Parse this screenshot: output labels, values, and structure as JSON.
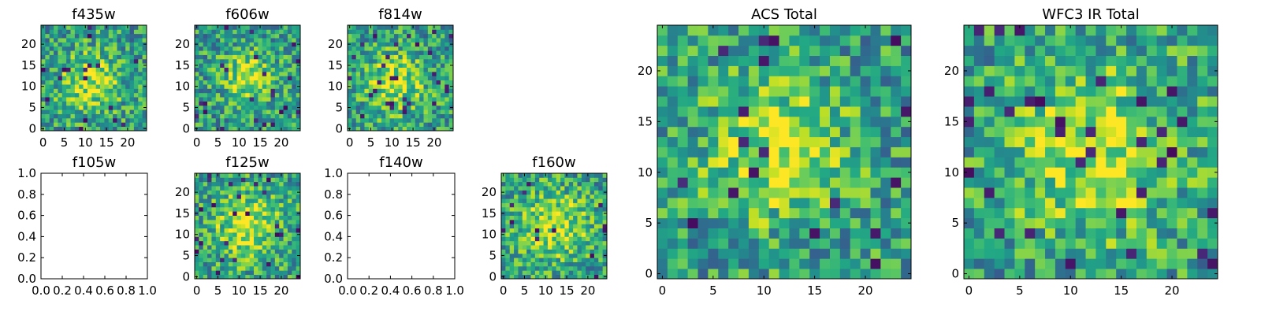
{
  "figure": {
    "panels": [
      {
        "id": "f435w",
        "title": "f435w",
        "kind": "image",
        "grid": 25,
        "seed": 11,
        "hot": [
          11,
          11,
          5
        ],
        "xticks": [
          "0",
          "5",
          "10",
          "15",
          "20"
        ],
        "xtick_values": [
          0,
          5,
          10,
          15,
          20
        ],
        "yticks": [
          "0",
          "5",
          "10",
          "15",
          "20"
        ],
        "ytick_values": [
          0,
          5,
          10,
          15,
          20
        ]
      },
      {
        "id": "f606w",
        "title": "f606w",
        "kind": "image",
        "grid": 25,
        "seed": 23,
        "hot": [
          12,
          12,
          4
        ],
        "xticks": [
          "0",
          "5",
          "10",
          "15",
          "20"
        ],
        "xtick_values": [
          0,
          5,
          10,
          15,
          20
        ],
        "yticks": [
          "0",
          "5",
          "10",
          "15",
          "20"
        ],
        "ytick_values": [
          0,
          5,
          10,
          15,
          20
        ]
      },
      {
        "id": "f814w",
        "title": "f814w",
        "kind": "image",
        "grid": 25,
        "seed": 37,
        "hot": [
          11,
          11,
          5
        ],
        "xticks": [
          "0",
          "5",
          "10",
          "15",
          "20"
        ],
        "xtick_values": [
          0,
          5,
          10,
          15,
          20
        ],
        "yticks": [
          "0",
          "5",
          "10",
          "15",
          "20"
        ],
        "ytick_values": [
          0,
          5,
          10,
          15,
          20
        ]
      },
      {
        "id": "f105w",
        "title": "f105w",
        "kind": "empty",
        "xticks": [
          "0.0",
          "0.2",
          "0.4",
          "0.6",
          "0.8",
          "1.0"
        ],
        "xtick_values": [
          0,
          0.2,
          0.4,
          0.6,
          0.8,
          1.0
        ],
        "yticks": [
          "0.0",
          "0.2",
          "0.4",
          "0.6",
          "0.8",
          "1.0"
        ],
        "ytick_values": [
          0,
          0.2,
          0.4,
          0.6,
          0.8,
          1.0
        ]
      },
      {
        "id": "f125w",
        "title": "f125w",
        "kind": "image",
        "grid": 25,
        "seed": 53,
        "hot": [
          12,
          12,
          6
        ],
        "xticks": [
          "0",
          "5",
          "10",
          "15",
          "20"
        ],
        "xtick_values": [
          0,
          5,
          10,
          15,
          20
        ],
        "yticks": [
          "0",
          "5",
          "10",
          "15",
          "20"
        ],
        "ytick_values": [
          0,
          5,
          10,
          15,
          20
        ]
      },
      {
        "id": "f140w",
        "title": "f140w",
        "kind": "empty",
        "xticks": [
          "0.0",
          "0.2",
          "0.4",
          "0.6",
          "0.8",
          "1.0"
        ],
        "xtick_values": [
          0,
          0.2,
          0.4,
          0.6,
          0.8,
          1.0
        ],
        "yticks": [
          "0.0",
          "0.2",
          "0.4",
          "0.6",
          "0.8",
          "1.0"
        ],
        "ytick_values": [
          0,
          0.2,
          0.4,
          0.6,
          0.8,
          1.0
        ]
      },
      {
        "id": "f160w",
        "title": "f160w",
        "kind": "image",
        "grid": 25,
        "seed": 71,
        "hot": [
          12,
          12,
          6
        ],
        "xticks": [
          "0",
          "5",
          "10",
          "15",
          "20"
        ],
        "xtick_values": [
          0,
          5,
          10,
          15,
          20
        ],
        "yticks": [
          "0",
          "5",
          "10",
          "15",
          "20"
        ],
        "ytick_values": [
          0,
          5,
          10,
          15,
          20
        ]
      },
      {
        "id": "acs-total",
        "title": "ACS Total",
        "kind": "image",
        "grid": 25,
        "seed": 89,
        "hot": [
          11,
          12,
          5
        ],
        "xticks": [
          "0",
          "5",
          "10",
          "15",
          "20"
        ],
        "xtick_values": [
          0,
          5,
          10,
          15,
          20
        ],
        "yticks": [
          "0",
          "5",
          "10",
          "15",
          "20"
        ],
        "ytick_values": [
          0,
          5,
          10,
          15,
          20
        ]
      },
      {
        "id": "wfc3-ir-total",
        "title": "WFC3 IR Total",
        "kind": "image",
        "grid": 25,
        "seed": 97,
        "hot": [
          12,
          12,
          6
        ],
        "xticks": [
          "0",
          "5",
          "10",
          "15",
          "20"
        ],
        "xtick_values": [
          0,
          5,
          10,
          15,
          20
        ],
        "yticks": [
          "0",
          "5",
          "10",
          "15",
          "20"
        ],
        "ytick_values": [
          0,
          5,
          10,
          15,
          20
        ]
      }
    ]
  },
  "chart_data": [
    {
      "type": "heatmap",
      "title": "f435w",
      "xlim": [
        -0.5,
        24.5
      ],
      "ylim": [
        -0.5,
        24.5
      ],
      "colormap": "viridis"
    },
    {
      "type": "heatmap",
      "title": "f606w",
      "xlim": [
        -0.5,
        24.5
      ],
      "ylim": [
        -0.5,
        24.5
      ],
      "colormap": "viridis"
    },
    {
      "type": "heatmap",
      "title": "f814w",
      "xlim": [
        -0.5,
        24.5
      ],
      "ylim": [
        -0.5,
        24.5
      ],
      "colormap": "viridis"
    },
    {
      "type": "heatmap",
      "title": "f105w",
      "xlim": [
        0,
        1
      ],
      "ylim": [
        0,
        1
      ],
      "empty": true
    },
    {
      "type": "heatmap",
      "title": "f125w",
      "xlim": [
        -0.5,
        24.5
      ],
      "ylim": [
        -0.5,
        24.5
      ],
      "colormap": "viridis"
    },
    {
      "type": "heatmap",
      "title": "f140w",
      "xlim": [
        0,
        1
      ],
      "ylim": [
        0,
        1
      ],
      "empty": true
    },
    {
      "type": "heatmap",
      "title": "f160w",
      "xlim": [
        -0.5,
        24.5
      ],
      "ylim": [
        -0.5,
        24.5
      ],
      "colormap": "viridis"
    },
    {
      "type": "heatmap",
      "title": "ACS Total",
      "xlim": [
        -0.5,
        24.5
      ],
      "ylim": [
        -0.5,
        24.5
      ],
      "colormap": "viridis"
    },
    {
      "type": "heatmap",
      "title": "WFC3 IR Total",
      "xlim": [
        -0.5,
        24.5
      ],
      "ylim": [
        -0.5,
        24.5
      ],
      "colormap": "viridis"
    }
  ]
}
